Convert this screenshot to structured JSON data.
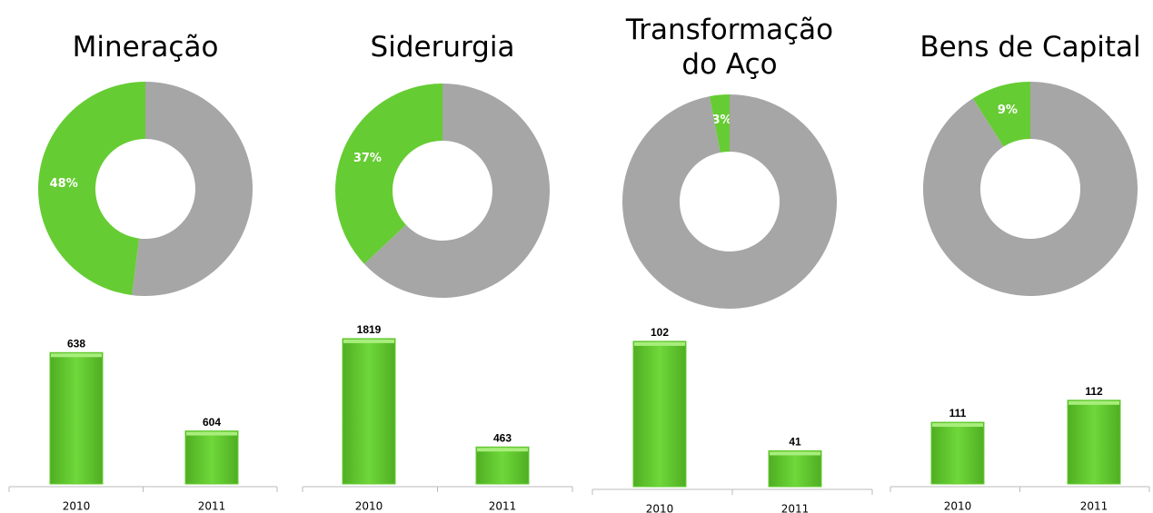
{
  "chart_data": [
    {
      "type": "pie",
      "title": "Mineração",
      "values": [
        48,
        52
      ],
      "colors": [
        "#66cc33",
        "#a6a6a6"
      ],
      "value_labels": [
        "48%",
        null
      ],
      "donut": true
    },
    {
      "type": "bar",
      "categories": [
        "2010",
        "2011"
      ],
      "values": [
        638,
        604
      ],
      "color": "#66cc33",
      "ylim": [
        581,
        646
      ]
    },
    {
      "type": "pie",
      "title": "Siderurgia",
      "values": [
        37,
        63
      ],
      "colors": [
        "#66cc33",
        "#a6a6a6"
      ],
      "value_labels": [
        "37%",
        null
      ],
      "donut": true
    },
    {
      "type": "bar",
      "categories": [
        "2010",
        "2011"
      ],
      "values": [
        1819,
        463
      ],
      "color": "#66cc33",
      "ylim": [
        0,
        1875
      ]
    },
    {
      "type": "pie",
      "title": "Transformação do Aço",
      "values": [
        3,
        97
      ],
      "colors": [
        "#66cc33",
        "#a6a6a6"
      ],
      "value_labels": [
        "3%",
        null
      ],
      "donut": true
    },
    {
      "type": "bar",
      "categories": [
        "2010",
        "2011"
      ],
      "values": [
        102,
        41
      ],
      "color": "#66cc33",
      "ylim": [
        21,
        106
      ]
    },
    {
      "type": "pie",
      "title": "Bens de Capital",
      "values": [
        9,
        91
      ],
      "colors": [
        "#66cc33",
        "#a6a6a6"
      ],
      "value_labels": [
        "9%",
        null
      ],
      "donut": true
    },
    {
      "type": "bar",
      "categories": [
        "2010",
        "2011"
      ],
      "values": [
        111,
        112
      ],
      "color": "#66cc33",
      "ylim": [
        108.2,
        115
      ]
    }
  ]
}
